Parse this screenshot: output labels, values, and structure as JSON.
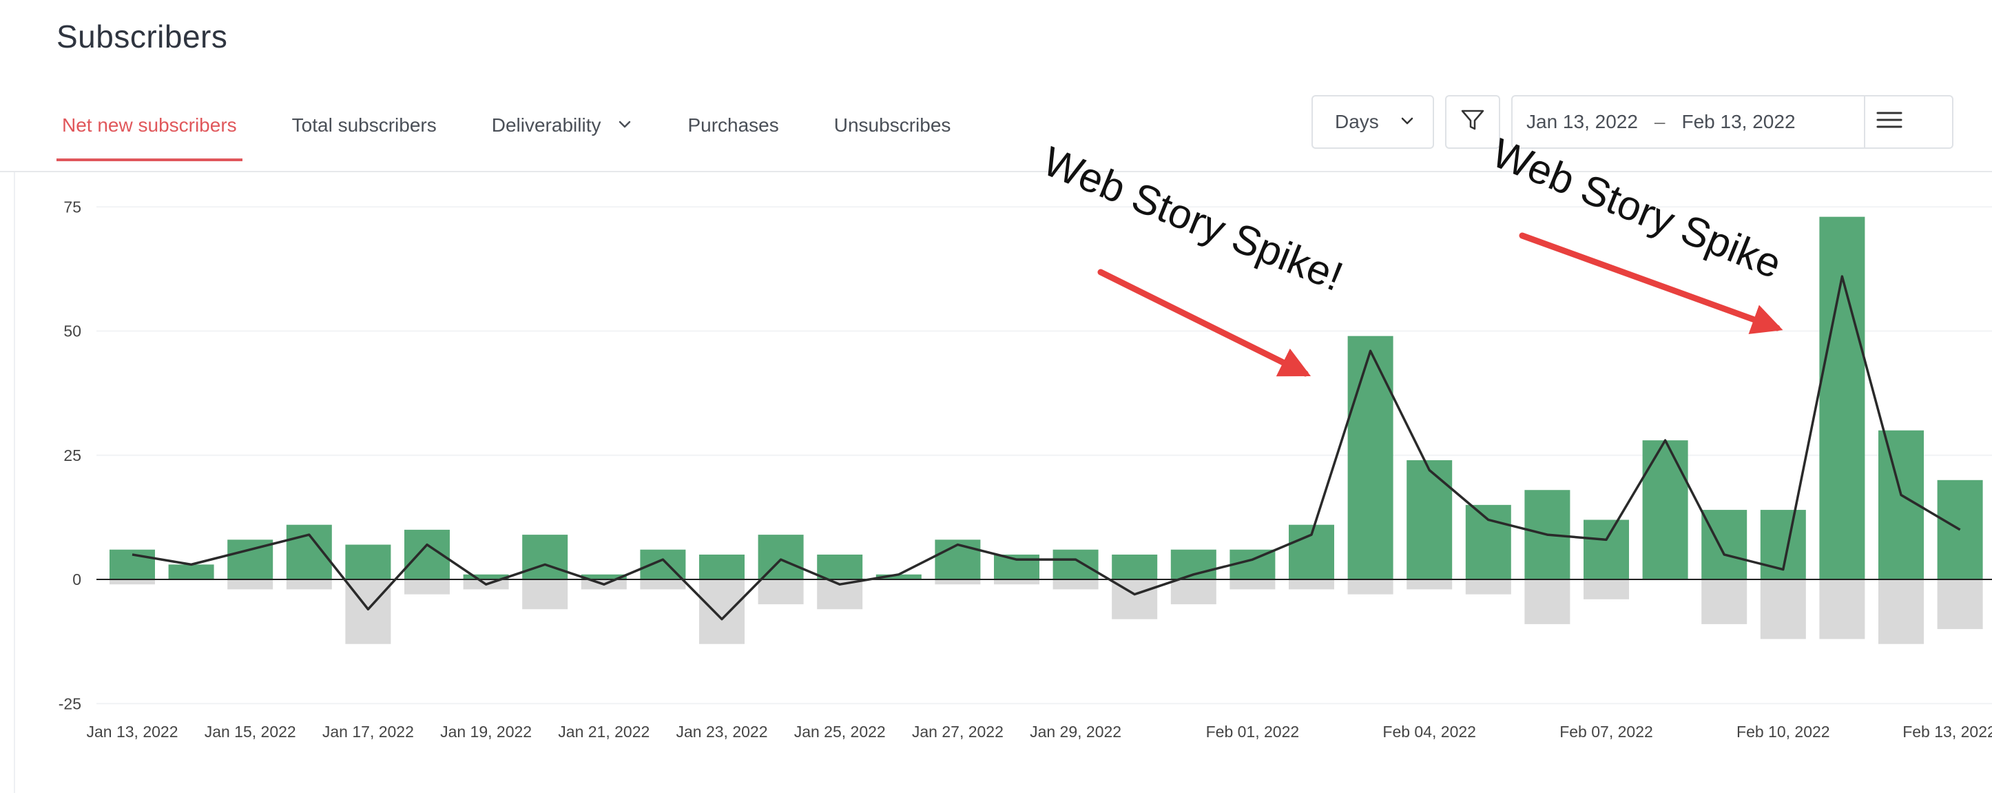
{
  "page": {
    "title": "Subscribers"
  },
  "tabs": [
    {
      "label": "Net new subscribers",
      "active": true
    },
    {
      "label": "Total subscribers",
      "active": false
    },
    {
      "label": "Deliverability",
      "active": false,
      "dropdown": true
    },
    {
      "label": "Purchases",
      "active": false
    },
    {
      "label": "Unsubscribes",
      "active": false
    }
  ],
  "controls": {
    "interval": "Days",
    "date_start": "Jan 13, 2022",
    "date_sep": "–",
    "date_end": "Feb 13, 2022"
  },
  "colors": {
    "accent": "#e0575b",
    "bar_positive": "#57a877",
    "bar_negative": "#d9d9d9",
    "line": "#2a2a2a",
    "arrow": "#e8403e"
  },
  "icons": {
    "interval_dropdown": "chevron-down-icon",
    "filter": "filter-icon",
    "menu": "hamburger-menu-icon"
  },
  "chart_data": {
    "type": "bar",
    "grid": true,
    "ylim": [
      -25,
      75
    ],
    "yticks": [
      75,
      50,
      25,
      0,
      -25
    ],
    "categories": [
      "Jan 13, 2022",
      "Jan 14, 2022",
      "Jan 15, 2022",
      "Jan 16, 2022",
      "Jan 17, 2022",
      "Jan 18, 2022",
      "Jan 19, 2022",
      "Jan 20, 2022",
      "Jan 21, 2022",
      "Jan 22, 2022",
      "Jan 23, 2022",
      "Jan 24, 2022",
      "Jan 25, 2022",
      "Jan 26, 2022",
      "Jan 27, 2022",
      "Jan 28, 2022",
      "Jan 29, 2022",
      "Jan 30, 2022",
      "Jan 31, 2022",
      "Feb 01, 2022",
      "Feb 02, 2022",
      "Feb 03, 2022",
      "Feb 04, 2022",
      "Feb 05, 2022",
      "Feb 06, 2022",
      "Feb 07, 2022",
      "Feb 08, 2022",
      "Feb 09, 2022",
      "Feb 10, 2022",
      "Feb 11, 2022",
      "Feb 12, 2022",
      "Feb 13, 2022"
    ],
    "xtick_labels": [
      {
        "index": 0,
        "label": "Jan 13, 2022"
      },
      {
        "index": 2,
        "label": "Jan 15, 2022"
      },
      {
        "index": 4,
        "label": "Jan 17, 2022"
      },
      {
        "index": 6,
        "label": "Jan 19, 2022"
      },
      {
        "index": 8,
        "label": "Jan 21, 2022"
      },
      {
        "index": 10,
        "label": "Jan 23, 2022"
      },
      {
        "index": 12,
        "label": "Jan 25, 2022"
      },
      {
        "index": 14,
        "label": "Jan 27, 2022"
      },
      {
        "index": 16,
        "label": "Jan 29, 2022"
      },
      {
        "index": 19,
        "label": "Feb 01, 2022"
      },
      {
        "index": 22,
        "label": "Feb 04, 2022"
      },
      {
        "index": 25,
        "label": "Feb 07, 2022"
      },
      {
        "index": 28,
        "label": "Feb 10, 2022"
      },
      {
        "index": 31,
        "label": "Feb 13, 2022"
      }
    ],
    "series": [
      {
        "values": [
          6,
          3,
          8,
          11,
          7,
          10,
          1,
          9,
          1,
          6,
          5,
          9,
          5,
          1,
          8,
          5,
          6,
          5,
          6,
          6,
          11,
          49,
          24,
          15,
          18,
          12,
          28,
          14,
          14,
          73,
          30,
          20
        ]
      },
      {
        "values": [
          -1,
          0,
          -2,
          -2,
          -13,
          -3,
          -2,
          -6,
          -2,
          -2,
          -13,
          -5,
          -6,
          0,
          -1,
          -1,
          -2,
          -8,
          -5,
          -2,
          -2,
          -3,
          -2,
          -3,
          -9,
          -4,
          0,
          -9,
          -12,
          -12,
          -13,
          -10
        ]
      },
      {
        "values": [
          5,
          3,
          6,
          9,
          -6,
          7,
          -1,
          3,
          -1,
          4,
          -8,
          4,
          -1,
          1,
          7,
          4,
          4,
          -3,
          1,
          4,
          9,
          46,
          22,
          12,
          9,
          8,
          28,
          5,
          2,
          61,
          17,
          10
        ]
      }
    ],
    "annotations": [
      {
        "text": "Web Story Spike!",
        "target_index": 21
      },
      {
        "text": "Web Story Spike",
        "target_index": 29
      }
    ]
  }
}
